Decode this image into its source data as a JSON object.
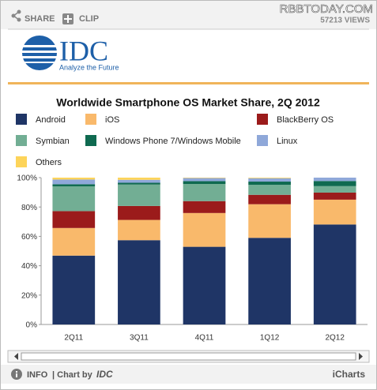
{
  "top_bar": {
    "share": "SHARE",
    "clip": "CLIP",
    "views": "57213 VIEWS",
    "watermark": "RBBTODAY.COM"
  },
  "header": {
    "logo": "IDC",
    "tagline": "Analyze the Future"
  },
  "footer": {
    "info": "INFO",
    "chart_by": "| Chart by",
    "brand": "IDC",
    "icharts": "iCharts"
  },
  "chart_data": {
    "type": "stacked_bar",
    "title": "Worldwide Smartphone OS Market Share, 2Q 2012",
    "categories": [
      "2Q11",
      "3Q11",
      "4Q11",
      "1Q12",
      "2Q12"
    ],
    "series": [
      {
        "name": "Android",
        "color": "#1f3566",
        "values": [
          46.9,
          57.4,
          52.9,
          59.0,
          68.1
        ]
      },
      {
        "name": "iOS",
        "color": "#f9b96b",
        "values": [
          18.8,
          13.8,
          23.0,
          22.9,
          16.9
        ]
      },
      {
        "name": "BlackBerry OS",
        "color": "#9b1b1b",
        "values": [
          11.5,
          9.5,
          8.1,
          6.4,
          4.8
        ]
      },
      {
        "name": "Symbian",
        "color": "#72ae94",
        "values": [
          16.9,
          14.6,
          11.7,
          6.8,
          4.4
        ]
      },
      {
        "name": "Windows Phone 7/Windows Mobile",
        "color": "#0f6a50",
        "values": [
          1.4,
          1.2,
          1.9,
          2.2,
          3.5
        ]
      },
      {
        "name": "Linux",
        "color": "#8fa8d9",
        "values": [
          3.2,
          2.0,
          2.1,
          2.3,
          2.3
        ]
      },
      {
        "name": "Others",
        "color": "#fdd45a",
        "values": [
          1.3,
          1.5,
          0.3,
          0.4,
          0.0
        ]
      }
    ],
    "ylim": [
      0,
      100
    ],
    "yticks": [
      {
        "value": 0,
        "label": "0%"
      },
      {
        "value": 20,
        "label": "20%"
      },
      {
        "value": 40,
        "label": "40%"
      },
      {
        "value": 60,
        "label": "60%"
      },
      {
        "value": 80,
        "label": "80%"
      },
      {
        "value": 100,
        "label": "100%"
      }
    ],
    "grid": false
  }
}
